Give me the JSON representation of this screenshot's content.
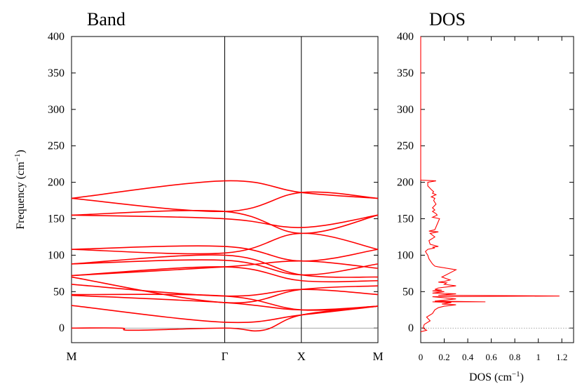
{
  "chart_data": [
    {
      "type": "line",
      "title": "Band",
      "ylabel": "Frequency (cm",
      "ylabel_sup": "−1",
      "ylabel_close": ")",
      "ylim": [
        -20,
        400
      ],
      "y_ticks": [
        0,
        50,
        100,
        150,
        200,
        250,
        300,
        350,
        400
      ],
      "x_labels": [
        "M",
        "Γ",
        "X",
        "M"
      ],
      "x_positions": [
        0,
        1,
        1.5,
        2
      ],
      "grid": false,
      "zero_line": true,
      "series_color": "#ff0000",
      "series": [
        {
          "x": [
            0,
            1,
            1.5,
            2
          ],
          "y": [
            178,
            202,
            186,
            178
          ]
        },
        {
          "x": [
            0,
            1,
            1.5,
            2
          ],
          "y": [
            178,
            160,
            186,
            178
          ]
        },
        {
          "x": [
            0,
            1,
            1.5,
            2
          ],
          "y": [
            155,
            160,
            130,
            155
          ]
        },
        {
          "x": [
            0,
            1,
            1.5,
            2
          ],
          "y": [
            155,
            150,
            138,
            155
          ]
        },
        {
          "x": [
            0,
            1,
            1.5,
            2
          ],
          "y": [
            108,
            112,
            92,
            108
          ]
        },
        {
          "x": [
            0,
            1,
            1.5,
            2
          ],
          "y": [
            108,
            103,
            130,
            108
          ]
        },
        {
          "x": [
            0,
            1,
            1.5,
            2
          ],
          "y": [
            88,
            100,
            73,
            70
          ]
        },
        {
          "x": [
            0,
            1,
            1.5,
            2
          ],
          "y": [
            88,
            93,
            73,
            88
          ]
        },
        {
          "x": [
            0,
            1,
            1.5,
            2
          ],
          "y": [
            72,
            84,
            92,
            82
          ]
        },
        {
          "x": [
            0,
            1,
            1.5,
            2
          ],
          "y": [
            72,
            84,
            65,
            65
          ]
        },
        {
          "x": [
            0,
            1,
            1.5,
            2
          ],
          "y": [
            70,
            35,
            53,
            58
          ]
        },
        {
          "x": [
            0,
            1,
            1.5,
            2
          ],
          "y": [
            60,
            44,
            53,
            46
          ]
        },
        {
          "x": [
            0,
            1,
            1.5,
            2
          ],
          "y": [
            46,
            44,
            25,
            30
          ]
        },
        {
          "x": [
            0,
            1,
            1.5,
            2
          ],
          "y": [
            45,
            35,
            25,
            30
          ]
        },
        {
          "x": [
            0,
            1,
            1.5,
            2
          ],
          "y": [
            31,
            8,
            18,
            30
          ]
        },
        {
          "x": [
            0,
            0.32,
            0.4,
            1,
            1.25,
            1.5,
            2
          ],
          "y": [
            0,
            0,
            -3,
            0,
            -3,
            18,
            30
          ]
        }
      ]
    },
    {
      "type": "line",
      "title": "DOS",
      "xlabel": "DOS (cm",
      "xlabel_sup": "−1",
      "xlabel_close": ")",
      "xlim": [
        0,
        1.3
      ],
      "x_ticks": [
        0,
        0.2,
        0.4,
        0.6,
        0.8,
        1,
        1.2
      ],
      "ylim": [
        -20,
        400
      ],
      "y_ticks": [
        0,
        50,
        100,
        150,
        200,
        250,
        300,
        350,
        400
      ],
      "grid": false,
      "zero_line": true,
      "series_color": "#ff0000",
      "series": [
        {
          "dos": [
            0,
            0.05,
            0.02,
            0.03,
            0.08,
            0.05,
            0.1,
            0.12,
            0.15,
            0.2,
            0.3,
            0.18,
            0.26,
            0.1,
            0.55,
            0.12,
            0.3,
            0.1,
            1.18,
            0.15,
            0.3,
            0.1,
            0.2,
            0.1,
            0.18,
            0.12,
            0.15,
            0.3,
            0.2,
            0.22,
            0.15,
            0.2,
            0.25,
            0.18,
            0.3,
            0.15,
            0.12,
            0.1,
            0.07,
            0.06,
            0.04,
            0.06,
            0.12,
            0.1,
            0.15,
            0.08,
            0.07,
            0.12,
            0.08,
            0.15,
            0.07,
            0.12,
            0.16,
            0.1,
            0.14,
            0.13,
            0.1,
            0.12,
            0.1,
            0.13,
            0.11,
            0.12,
            0.09,
            0.13,
            0.1,
            0.11,
            0.09,
            0.06,
            0.06,
            0.13,
            0,
            0
          ],
          "freq": [
            -5,
            -3,
            0,
            5,
            10,
            15,
            20,
            25,
            28,
            30,
            32,
            33,
            35,
            36,
            36,
            37,
            40,
            43,
            44,
            45,
            47,
            48,
            50,
            51,
            52,
            53,
            55,
            58,
            60,
            62,
            63,
            64,
            66,
            70,
            80,
            84,
            85,
            88,
            95,
            100,
            105,
            108,
            110,
            111,
            112,
            115,
            120,
            125,
            130,
            132,
            133,
            135,
            150,
            152,
            155,
            157,
            160,
            162,
            165,
            170,
            175,
            178,
            180,
            183,
            185,
            187,
            190,
            195,
            200,
            202,
            203,
            400
          ]
        }
      ]
    }
  ]
}
